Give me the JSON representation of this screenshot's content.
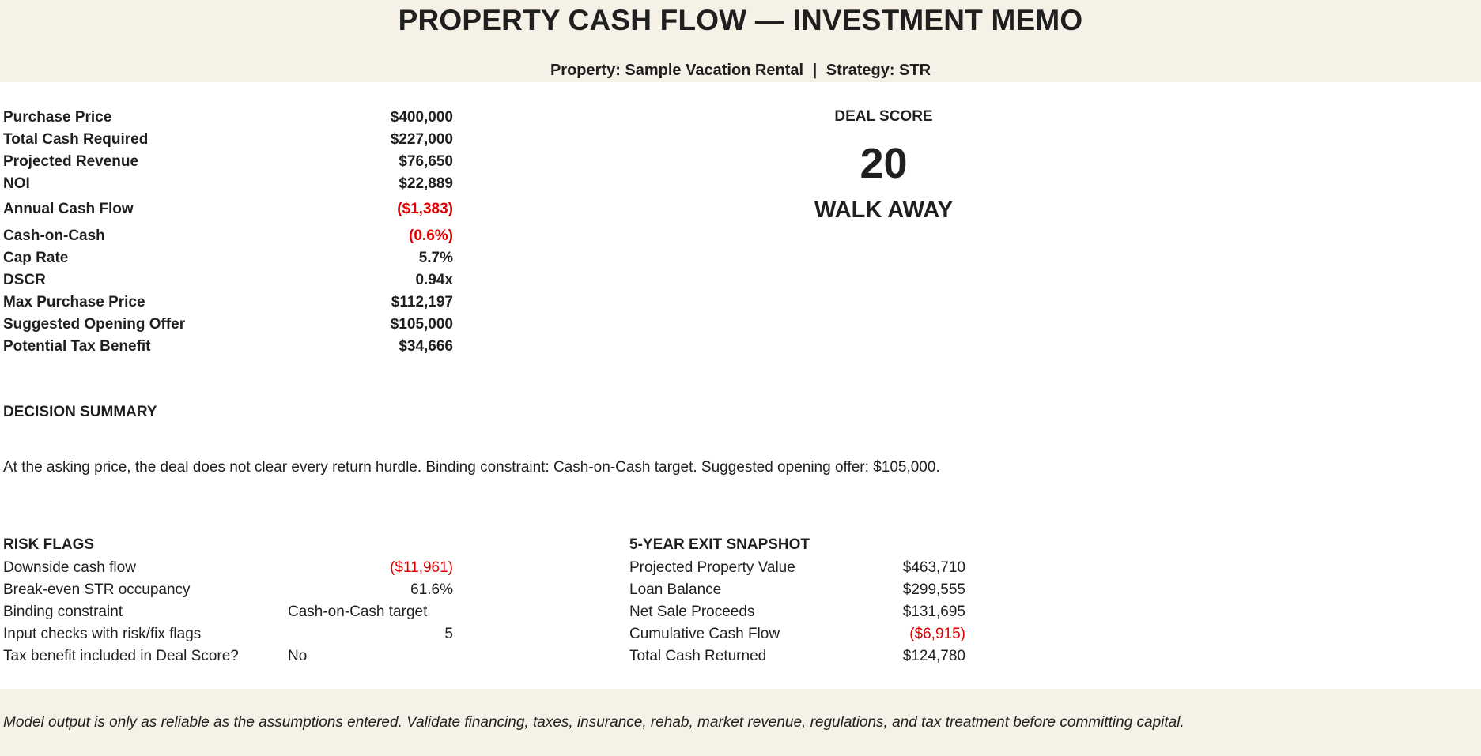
{
  "header": {
    "title": "PROPERTY CASH FLOW — INVESTMENT MEMO",
    "property_label": "Property: Sample Vacation Rental",
    "separator": "|",
    "strategy_label": "Strategy: STR"
  },
  "metrics": [
    {
      "label": "Purchase Price",
      "value": "$400,000"
    },
    {
      "label": "Total Cash Required",
      "value": "$227,000"
    },
    {
      "label": "Projected Revenue",
      "value": "$76,650"
    },
    {
      "label": "NOI",
      "value": "$22,889"
    },
    {
      "label": "Annual Cash Flow",
      "value": "($1,383)"
    },
    {
      "label": "Cash-on-Cash",
      "value": "(0.6%)"
    },
    {
      "label": "Cap Rate",
      "value": "5.7%"
    },
    {
      "label": "DSCR",
      "value": "0.94x"
    },
    {
      "label": "Max Purchase Price",
      "value": "$112,197"
    },
    {
      "label": "Suggested Opening Offer",
      "value": "$105,000"
    },
    {
      "label": "Potential Tax Benefit",
      "value": "$34,666"
    }
  ],
  "deal_score": {
    "label": "DEAL SCORE",
    "value": "20",
    "verdict": "WALK AWAY"
  },
  "decision_summary": {
    "heading": "DECISION SUMMARY",
    "text": "At the asking price, the deal does not clear every return hurdle. Binding constraint: Cash-on-Cash target. Suggested opening offer: $105,000."
  },
  "risk_flags": {
    "heading": "RISK FLAGS",
    "rows": [
      {
        "label": "Downside cash flow",
        "value": "($11,961)"
      },
      {
        "label": "Break-even STR occupancy",
        "value": "61.6%"
      },
      {
        "label": "Binding constraint",
        "value": "Cash-on-Cash target"
      },
      {
        "label": "Input checks with risk/fix flags",
        "value": "5"
      },
      {
        "label": "Tax benefit included in Deal Score?",
        "value": "No"
      }
    ]
  },
  "exit_snapshot": {
    "heading": "5-YEAR EXIT SNAPSHOT",
    "rows": [
      {
        "label": "Projected Property Value",
        "value": "$463,710"
      },
      {
        "label": "Loan Balance",
        "value": "$299,555"
      },
      {
        "label": "Net Sale Proceeds",
        "value": "$131,695"
      },
      {
        "label": "Cumulative Cash Flow",
        "value": "($6,915)"
      },
      {
        "label": "Total Cash Returned",
        "value": "$124,780"
      }
    ]
  },
  "footer": {
    "disclaimer": "Model output is only as reliable as the assumptions entered. Validate financing, taxes, insurance, rehab, market revenue, regulations, and tax treatment before committing capital."
  },
  "colors": {
    "banner_bg": "#f5f1e6",
    "negative": "#e00000",
    "text": "#1f1f1f"
  }
}
